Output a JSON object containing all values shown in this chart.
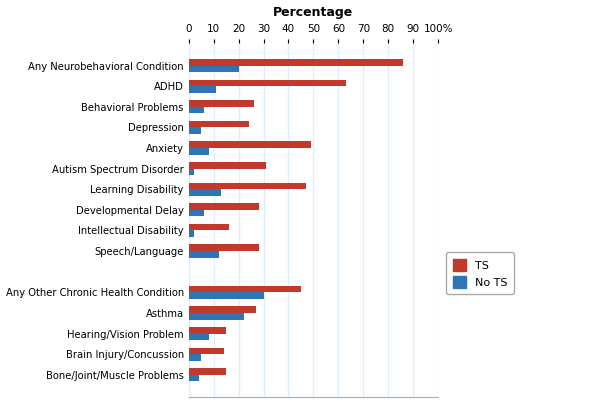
{
  "categories": [
    "Any Neurobehavioral Condition",
    "ADHD",
    "Behavioral Problems",
    "Depression",
    "Anxiety",
    "Autism Spectrum Disorder",
    "Learning Disability",
    "Developmental Delay",
    "Intellectual Disability",
    "Speech/Language",
    "",
    "Any Other Chronic Health Condition",
    "Asthma",
    "Hearing/Vision Problem",
    "Brain Injury/Concussion",
    "Bone/Joint/Muscle Problems"
  ],
  "ts_values": [
    86,
    63,
    26,
    24,
    49,
    31,
    47,
    28,
    16,
    28,
    0,
    45,
    27,
    15,
    14,
    15
  ],
  "no_ts_values": [
    20,
    11,
    6,
    5,
    8,
    2,
    13,
    6,
    2,
    12,
    0,
    30,
    22,
    8,
    5,
    4
  ],
  "ts_color": "#C0392B",
  "no_ts_color": "#2E75B6",
  "title": "Percentage",
  "xlim": [
    0,
    100
  ],
  "xticks": [
    0,
    10,
    20,
    30,
    40,
    50,
    60,
    70,
    80,
    90,
    100
  ],
  "xtick_labels": [
    "0",
    "10",
    "20",
    "30",
    "40",
    "50",
    "60",
    "70",
    "80",
    "90",
    "100%"
  ],
  "legend_ts": "TS",
  "legend_no_ts": "No TS",
  "bg_color": "#FFFFFF",
  "grid_color": "#DDEEFF",
  "bar_height": 0.32,
  "label_fontsize": 7.2,
  "tick_fontsize": 7.5
}
